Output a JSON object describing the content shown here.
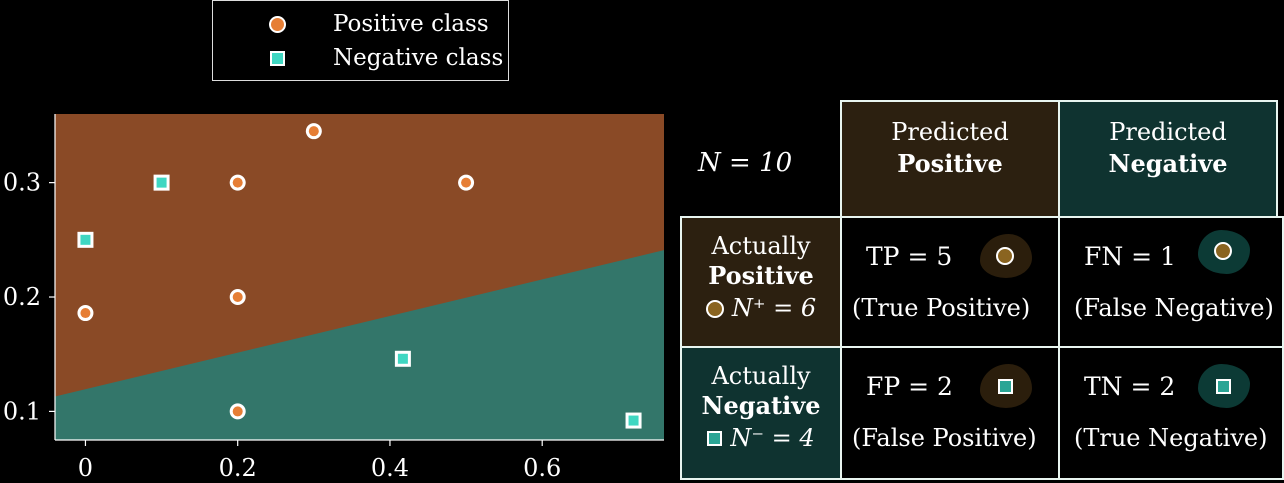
{
  "legend": {
    "positive_label": "Positive class",
    "negative_label": "Negative class"
  },
  "chart_data": {
    "type": "scatter",
    "title": "",
    "xlabel": "",
    "ylabel": "",
    "xlim": [
      -0.04,
      0.76
    ],
    "ylim": [
      0.075,
      0.36
    ],
    "x_ticks": [
      0,
      0.2,
      0.4,
      0.6
    ],
    "x_tick_labels": [
      "0",
      "0.2",
      "0.4",
      "0.6"
    ],
    "y_ticks": [
      0.1,
      0.2,
      0.3
    ],
    "y_tick_labels": [
      "0.1",
      "0.2",
      "0.3"
    ],
    "decision_boundary": {
      "x": [
        -0.04,
        0.76
      ],
      "y": [
        0.113,
        0.241
      ]
    },
    "regions": {
      "above": "#8a4a26",
      "below": "#33766a"
    },
    "series": [
      {
        "name": "Positive class",
        "color": "#e67e35",
        "marker": "circle",
        "points": [
          [
            0.3,
            0.345
          ],
          [
            0.2,
            0.3
          ],
          [
            0.5,
            0.3
          ],
          [
            0.2,
            0.2
          ],
          [
            0.0,
            0.186
          ],
          [
            0.2,
            0.1
          ]
        ]
      },
      {
        "name": "Negative class",
        "color": "#3fd7c2",
        "marker": "square",
        "points": [
          [
            0.1,
            0.3
          ],
          [
            0.0,
            0.25
          ],
          [
            0.417,
            0.146
          ],
          [
            0.72,
            0.092
          ]
        ]
      }
    ],
    "legend_position": "top"
  },
  "matrix": {
    "n_total": "N = 10",
    "pred_pos_line1": "Predicted",
    "pred_pos_line2": "Positive",
    "pred_neg_line1": "Predicted",
    "pred_neg_line2": "Negative",
    "act_pos_line1": "Actually",
    "act_pos_line2": "Positive",
    "act_pos_count": "N⁺ = 6",
    "act_neg_line1": "Actually",
    "act_neg_line2": "Negative",
    "act_neg_count": "N⁻ = 4",
    "tp_value": "TP = 5",
    "tp_desc": "(True Positive)",
    "fn_value": "FN = 1",
    "fn_desc": "(False Negative)",
    "fp_value": "FP = 2",
    "fp_desc": "(False Positive)",
    "tn_value": "TN = 2",
    "tn_desc": "(True Negative)"
  }
}
